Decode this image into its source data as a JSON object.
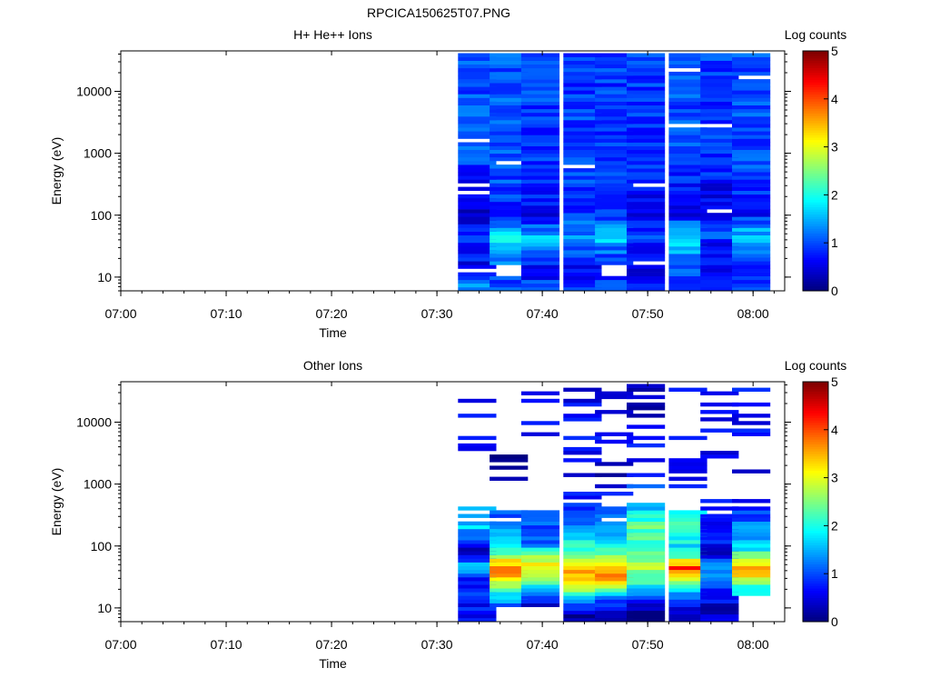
{
  "figure": {
    "title": "RPCICA150625T07.PNG"
  },
  "chart_data": [
    {
      "type": "heatmap",
      "title": "H+ He++ Ions",
      "xlabel": "Time",
      "ylabel": "Energy (eV)",
      "x_ticks": [
        "07:00",
        "07:10",
        "07:20",
        "07:30",
        "07:40",
        "07:50",
        "08:00"
      ],
      "xlim": [
        "07:00",
        "08:03"
      ],
      "y_scale": "log",
      "ylim": [
        6,
        45000
      ],
      "y_ticks": [
        "10",
        "100",
        "1000",
        "10000"
      ],
      "colorbar": {
        "label": "Log counts",
        "range": [
          0,
          5
        ],
        "ticks": [
          "0",
          "1",
          "2",
          "3",
          "4",
          "5"
        ],
        "colormap": "jet"
      },
      "time_bins": [
        "07:32",
        "07:35",
        "07:38",
        "07:42",
        "07:45",
        "07:48",
        "07:52",
        "07:55",
        "07:58"
      ],
      "profile_log_counts_by_energy": [
        {
          "energy_eV": 8,
          "values": [
            1.3,
            0.9,
            1.0,
            0.8,
            0.9,
            0.9,
            1.0,
            0.9,
            0.9
          ]
        },
        {
          "energy_eV": 12,
          "values": [
            0.5,
            null,
            0.5,
            0.6,
            null,
            0.4,
            0.9,
            0.6,
            0.6
          ]
        },
        {
          "energy_eV": 20,
          "values": [
            0.7,
            1.3,
            1.0,
            0.8,
            1.0,
            0.9,
            1.2,
            0.8,
            0.9
          ]
        },
        {
          "energy_eV": 30,
          "values": [
            0.5,
            1.6,
            1.2,
            1.1,
            1.2,
            0.5,
            1.5,
            0.6,
            1.3
          ]
        },
        {
          "energy_eV": 45,
          "values": [
            0.9,
            1.8,
            1.5,
            1.3,
            1.8,
            0.9,
            1.7,
            1.0,
            1.6
          ]
        },
        {
          "energy_eV": 70,
          "values": [
            0.6,
            1.2,
            1.0,
            1.1,
            1.3,
            0.8,
            1.3,
            0.8,
            1.2
          ]
        },
        {
          "energy_eV": 100,
          "values": [
            0.3,
            0.8,
            0.6,
            0.9,
            0.8,
            0.5,
            0.6,
            0.4,
            0.7
          ]
        },
        {
          "energy_eV": 1000,
          "values": [
            1.0,
            1.1,
            0.9,
            1.0,
            0.9,
            0.9,
            1.0,
            0.9,
            1.0
          ]
        },
        {
          "energy_eV": 10000,
          "values": [
            1.0,
            1.0,
            0.9,
            0.9,
            0.9,
            0.9,
            1.0,
            0.9,
            1.0
          ]
        }
      ]
    },
    {
      "type": "heatmap",
      "title": "Other Ions",
      "xlabel": "Time",
      "ylabel": "Energy (eV)",
      "x_ticks": [
        "07:00",
        "07:10",
        "07:20",
        "07:30",
        "07:40",
        "07:50",
        "08:00"
      ],
      "xlim": [
        "07:00",
        "08:03"
      ],
      "y_scale": "log",
      "ylim": [
        6,
        45000
      ],
      "y_ticks": [
        "10",
        "100",
        "1000",
        "10000"
      ],
      "colorbar": {
        "label": "Log counts",
        "range": [
          0,
          5
        ],
        "ticks": [
          "0",
          "1",
          "2",
          "3",
          "4",
          "5"
        ],
        "colormap": "jet"
      },
      "time_bins": [
        "07:32",
        "07:35",
        "07:38",
        "07:42",
        "07:45",
        "07:48",
        "07:52",
        "07:55",
        "07:58"
      ],
      "profile_log_counts_by_energy": [
        {
          "energy_eV": 8,
          "values": [
            0.6,
            null,
            null,
            0.2,
            0.3,
            0.2,
            0.4,
            0.3,
            null
          ]
        },
        {
          "energy_eV": 12,
          "values": [
            0.7,
            1.2,
            0.5,
            1.1,
            0.9,
            0.6,
            0.8,
            0.5,
            null
          ]
        },
        {
          "energy_eV": 20,
          "values": [
            0.8,
            2.2,
            1.8,
            2.6,
            2.2,
            1.6,
            1.8,
            0.9,
            1.9
          ]
        },
        {
          "energy_eV": 30,
          "values": [
            0.4,
            3.3,
            2.5,
            3.4,
            3.6,
            2.3,
            3.2,
            1.3,
            3.1
          ]
        },
        {
          "energy_eV": 45,
          "values": [
            1.8,
            3.8,
            3.2,
            3.6,
            3.7,
            2.8,
            4.2,
            1.6,
            3.4
          ]
        },
        {
          "energy_eV": 70,
          "values": [
            0.6,
            2.6,
            2.8,
            2.4,
            2.6,
            2.6,
            2.2,
            0.4,
            2.5
          ]
        },
        {
          "energy_eV": 100,
          "values": [
            0.4,
            1.6,
            1.2,
            2.0,
            1.8,
            2.1,
            1.7,
            0.6,
            1.6
          ]
        },
        {
          "energy_eV": 200,
          "values": [
            1.6,
            1.5,
            1.0,
            1.3,
            1.5,
            2.3,
            2.3,
            0.8,
            1.3
          ]
        },
        {
          "energy_eV": 1000,
          "values": [
            null,
            0.2,
            null,
            0.4,
            0.4,
            0.9,
            0.6,
            0.5,
            0.4
          ]
        },
        {
          "energy_eV": 10000,
          "values": [
            0.6,
            null,
            0.5,
            0.6,
            0.5,
            0.4,
            0.7,
            0.5,
            0.6
          ]
        }
      ]
    }
  ]
}
